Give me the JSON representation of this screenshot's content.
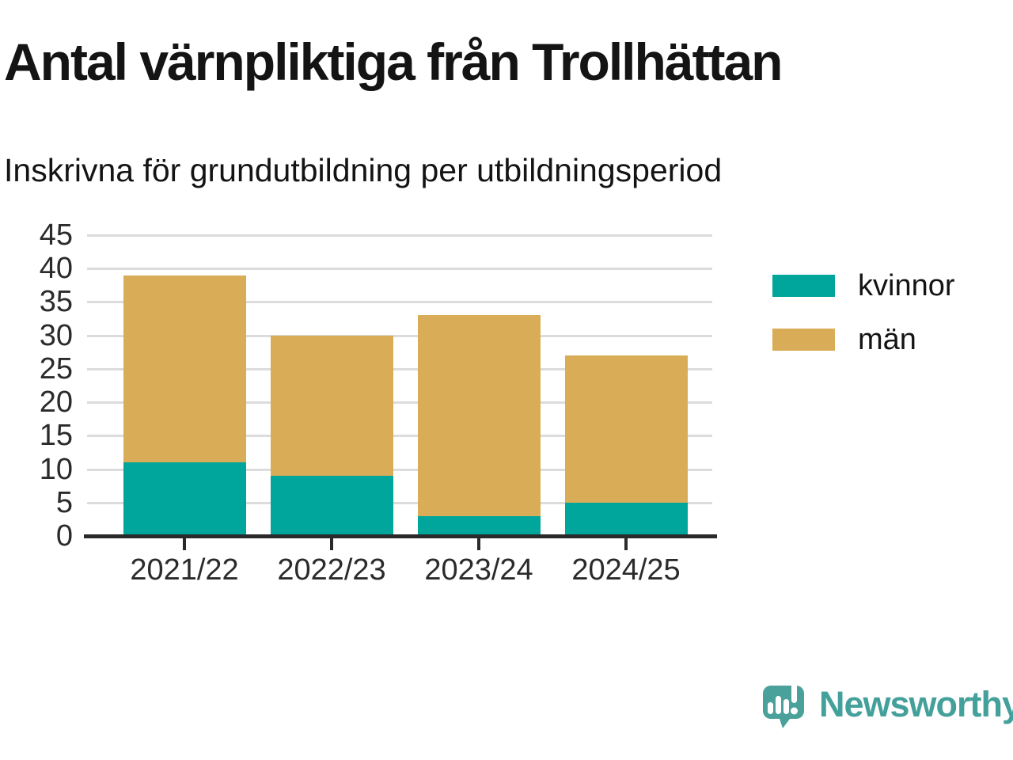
{
  "header": {
    "title": "Antal värnpliktiga från Trollhättan",
    "subtitle": "Inskrivna för grundutbildning per utbildningsperiod"
  },
  "chart_data": {
    "type": "bar",
    "stacked": true,
    "title": "Antal värnpliktiga från Trollhättan",
    "subtitle": "Inskrivna för grundutbildning per utbildningsperiod",
    "categories": [
      "2021/22",
      "2022/23",
      "2023/24",
      "2024/25"
    ],
    "series": [
      {
        "name": "kvinnor",
        "color": "#00A59B",
        "values": [
          11,
          9,
          3,
          5
        ]
      },
      {
        "name": "män",
        "color": "#D9AC57",
        "values": [
          28,
          21,
          30,
          22
        ]
      }
    ],
    "totals": [
      39,
      30,
      33,
      27
    ],
    "xlabel": "",
    "ylabel": "",
    "ylim": [
      0,
      45
    ],
    "yticks": [
      0,
      5,
      10,
      15,
      20,
      25,
      30,
      35,
      40,
      45
    ],
    "grid": "horizontal",
    "legend_position": "right",
    "colors": {
      "grid": "#dcdcdc",
      "axis": "#2a2a2a",
      "tick_text": "#2b2b2b"
    }
  },
  "branding": {
    "wordmark": "Newsworthy",
    "logo_color": "#44a09a"
  }
}
